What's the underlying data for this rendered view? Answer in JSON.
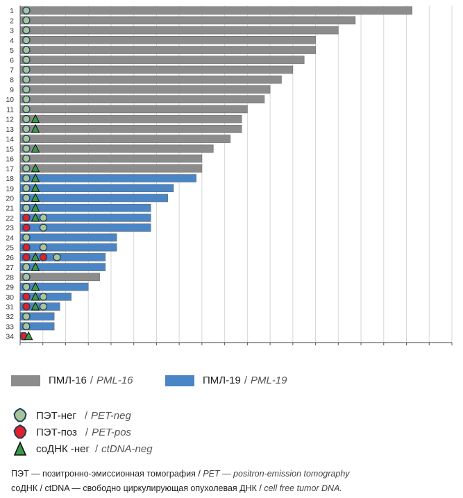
{
  "colors": {
    "pml16": "#8c8c8c",
    "pml19": "#4a86c6",
    "pet_neg": "#a9c49a",
    "pet_pos": "#e0202a",
    "ctdna_neg": "#3a9a4c",
    "grid": "#d6d6d6"
  },
  "chart_data": {
    "type": "bar",
    "orientation": "horizontal",
    "categories": [
      "1",
      "2",
      "3",
      "4",
      "5",
      "6",
      "7",
      "8",
      "9",
      "10",
      "11",
      "12",
      "13",
      "14",
      "15",
      "16",
      "17",
      "18",
      "19",
      "20",
      "21",
      "22",
      "23",
      "24",
      "25",
      "26",
      "27",
      "28",
      "29",
      "30",
      "31",
      "32",
      "33",
      "34"
    ],
    "values": [
      69,
      59,
      56,
      52,
      52,
      50,
      48,
      46,
      44,
      43,
      40,
      39,
      39,
      37,
      34,
      32,
      32,
      31,
      27,
      26,
      23,
      23,
      23,
      17,
      17,
      15,
      15,
      14,
      12,
      9,
      7,
      6,
      6,
      1
    ],
    "group": [
      "PML-16",
      "PML-16",
      "PML-16",
      "PML-16",
      "PML-16",
      "PML-16",
      "PML-16",
      "PML-16",
      "PML-16",
      "PML-16",
      "PML-16",
      "PML-16",
      "PML-16",
      "PML-16",
      "PML-16",
      "PML-16",
      "PML-16",
      "PML-19",
      "PML-19",
      "PML-19",
      "PML-19",
      "PML-19",
      "PML-19",
      "PML-19",
      "PML-19",
      "PML-19",
      "PML-19",
      "PML-16",
      "PML-19",
      "PML-19",
      "PML-19",
      "PML-19",
      "PML-19",
      "PML-19"
    ],
    "markers": [
      [
        {
          "t": "pet_neg",
          "x": 0.6
        }
      ],
      [
        {
          "t": "pet_neg",
          "x": 0.6
        }
      ],
      [
        {
          "t": "pet_neg",
          "x": 0.6
        }
      ],
      [
        {
          "t": "pet_neg",
          "x": 0.6
        }
      ],
      [
        {
          "t": "pet_neg",
          "x": 0.6
        }
      ],
      [
        {
          "t": "pet_neg",
          "x": 0.6
        }
      ],
      [
        {
          "t": "pet_neg",
          "x": 0.6
        }
      ],
      [
        {
          "t": "pet_neg",
          "x": 0.6
        }
      ],
      [
        {
          "t": "pet_neg",
          "x": 0.6
        }
      ],
      [
        {
          "t": "pet_neg",
          "x": 0.6
        }
      ],
      [
        {
          "t": "pet_neg",
          "x": 0.6
        }
      ],
      [
        {
          "t": "pet_neg",
          "x": 0.6
        },
        {
          "t": "ctdna_neg",
          "x": 2.2
        }
      ],
      [
        {
          "t": "pet_neg",
          "x": 0.6
        },
        {
          "t": "ctdna_neg",
          "x": 2.2
        }
      ],
      [
        {
          "t": "pet_neg",
          "x": 0.6
        }
      ],
      [
        {
          "t": "pet_neg",
          "x": 0.6
        },
        {
          "t": "ctdna_neg",
          "x": 2.2
        }
      ],
      [
        {
          "t": "pet_neg",
          "x": 0.6
        }
      ],
      [
        {
          "t": "pet_neg",
          "x": 0.6
        },
        {
          "t": "ctdna_neg",
          "x": 2.2
        }
      ],
      [
        {
          "t": "pet_neg",
          "x": 0.6
        },
        {
          "t": "ctdna_neg",
          "x": 2.2
        }
      ],
      [
        {
          "t": "pet_neg",
          "x": 0.6
        },
        {
          "t": "ctdna_neg",
          "x": 2.2
        }
      ],
      [
        {
          "t": "pet_neg",
          "x": 0.6
        },
        {
          "t": "ctdna_neg",
          "x": 2.2
        }
      ],
      [
        {
          "t": "pet_neg",
          "x": 0.6
        },
        {
          "t": "ctdna_neg",
          "x": 2.2
        }
      ],
      [
        {
          "t": "pet_pos",
          "x": 0.6
        },
        {
          "t": "ctdna_neg",
          "x": 2.2
        },
        {
          "t": "pet_neg",
          "x": 3.6
        }
      ],
      [
        {
          "t": "pet_pos",
          "x": 0.6
        },
        {
          "t": "pet_neg",
          "x": 3.6
        }
      ],
      [
        {
          "t": "pet_neg",
          "x": 0.6
        }
      ],
      [
        {
          "t": "pet_pos",
          "x": 0.6
        },
        {
          "t": "pet_neg",
          "x": 3.6
        }
      ],
      [
        {
          "t": "pet_pos",
          "x": 0.6
        },
        {
          "t": "ctdna_neg",
          "x": 2.2
        },
        {
          "t": "pet_pos",
          "x": 3.6
        },
        {
          "t": "pet_neg",
          "x": 6.0
        }
      ],
      [
        {
          "t": "pet_neg",
          "x": 0.6
        },
        {
          "t": "ctdna_neg",
          "x": 2.2
        }
      ],
      [
        {
          "t": "pet_neg",
          "x": 0.6
        }
      ],
      [
        {
          "t": "pet_neg",
          "x": 0.6
        },
        {
          "t": "ctdna_neg",
          "x": 2.2
        }
      ],
      [
        {
          "t": "pet_pos",
          "x": 0.6
        },
        {
          "t": "ctdna_neg",
          "x": 2.2
        },
        {
          "t": "pet_neg",
          "x": 3.6
        }
      ],
      [
        {
          "t": "pet_pos",
          "x": 0.6
        },
        {
          "t": "ctdna_neg",
          "x": 2.2
        },
        {
          "t": "pet_neg",
          "x": 3.6
        }
      ],
      [
        {
          "t": "pet_neg",
          "x": 0.6
        }
      ],
      [
        {
          "t": "pet_neg",
          "x": 0.6
        }
      ],
      [
        {
          "t": "pet_pos",
          "x": 0.2
        },
        {
          "t": "ctdna_neg",
          "x": 1.0
        }
      ]
    ],
    "xlim": [
      0,
      76
    ],
    "xticks": [
      0,
      4,
      8,
      12,
      16,
      20,
      24,
      28,
      32,
      36,
      40,
      44,
      48,
      52,
      56,
      60,
      64,
      68,
      72,
      76
    ],
    "grid": true,
    "xlabel": "",
    "ylabel": "",
    "title": ""
  },
  "legend": {
    "pml16": {
      "label_ru": "ПМЛ-16",
      "sep": "/",
      "label_en": "PML-16"
    },
    "pml19": {
      "label_ru": "ПМЛ-19",
      "sep": "/",
      "label_en": "PML-19"
    },
    "pet_neg": {
      "label_ru": "ПЭТ-нег",
      "sep": "/",
      "label_en": "PET-neg"
    },
    "pet_pos": {
      "label_ru": "ПЭТ-поз",
      "sep": "/",
      "label_en": "PET-pos"
    },
    "ctdna_neg": {
      "label_ru": "соДНК -нег",
      "sep": "/",
      "label_en": "ctDNA-neg"
    }
  },
  "notes": {
    "pet": {
      "ru": "ПЭТ — позитронно-эмиссионная томография",
      "sep": "/",
      "en": "PET — positron-emission tomography"
    },
    "ctdna": {
      "ru": "соДНК / ctDNA — свободно циркулирующая опухолевая ДНК",
      "sep": "/",
      "en": "cell free tumor DNA."
    }
  }
}
